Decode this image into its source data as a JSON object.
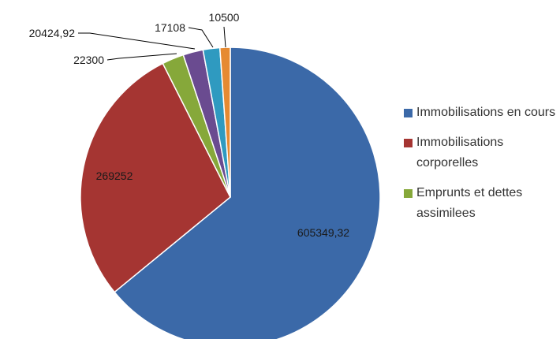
{
  "chart_data": {
    "type": "pie",
    "title": "",
    "slices": [
      {
        "label": "Immobilisations en cours",
        "value": 605349.32,
        "display": "605349,32",
        "color": "#3b69a8"
      },
      {
        "label": "Immobilisations corporelles",
        "value": 269252,
        "display": "269252",
        "color": "#a53532"
      },
      {
        "label": "Emprunts et dettes assimilees",
        "value": 22300,
        "display": "22300",
        "color": "#86a83a"
      },
      {
        "label": "",
        "value": 20424.92,
        "display": "20424,92",
        "color": "#6a4b90"
      },
      {
        "label": "",
        "value": 17108,
        "display": "17108",
        "color": "#2f9ac0"
      },
      {
        "label": "",
        "value": 10500,
        "display": "10500",
        "color": "#e68a32"
      }
    ],
    "legend_position": "right",
    "legend": [
      {
        "text": "Immobilisations en cours",
        "color": "#3b69a8"
      },
      {
        "text": "Immobilisations corporelles",
        "color": "#a53532"
      },
      {
        "text": "Emprunts et dettes assimilees",
        "color": "#86a83a"
      }
    ]
  }
}
